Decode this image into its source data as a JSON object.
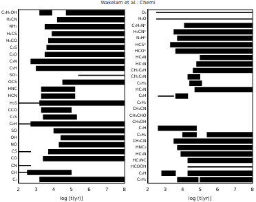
{
  "header": "Wakelam et al.: Chemi",
  "chart_data": [
    {
      "type": "bar",
      "orientation": "horizontal",
      "grid": false,
      "xlabel": "log [t(yr)]",
      "xlim": [
        2,
        8
      ],
      "xticks": [
        2,
        3,
        4,
        5,
        6,
        7,
        8
      ],
      "categories": [
        "C₂H₅OH",
        "H₂CN",
        "NH₃",
        "H₂CS",
        "H₂CO",
        "C₃S",
        "C₃O",
        "C₃N",
        "C₃H",
        "SO₂",
        "OCS",
        "HNC",
        "HCN",
        "H₂S",
        "CCO",
        "C₂S",
        "C₂H",
        "SO",
        "OH",
        "NO",
        "CS",
        "CO",
        "CN",
        "CH",
        "C₂"
      ],
      "series": [
        {
          "line_style": "solid",
          "color": "#000000",
          "values": [
            [
              [
                3.2,
                3.9
              ],
              [
                4.7,
                8
              ]
            ],
            [
              [
                4.2,
                8
              ]
            ],
            [
              [
                3.5,
                8
              ]
            ],
            [
              [
                3.9,
                8
              ]
            ],
            [
              [
                3.7,
                8
              ]
            ],
            [
              [
                3.6,
                8
              ]
            ],
            [
              [
                3.5,
                8
              ]
            ],
            [
              [
                2.7,
                8
              ]
            ],
            [
              [
                3.0,
                8
              ]
            ],
            [],
            [
              [
                4.5,
                8
              ]
            ],
            [
              [
                3.3,
                5.2
              ]
            ],
            [
              [
                3.3,
                5.2
              ]
            ],
            [
              [
                3.2,
                8
              ]
            ],
            [
              [
                3.3,
                5.0
              ]
            ],
            [
              [
                3.4,
                5.3
              ]
            ],
            [
              [
                2.7,
                8
              ]
            ],
            [
              [
                4.0,
                8
              ]
            ],
            [
              [
                4.4,
                8
              ]
            ],
            [
              [
                4.3,
                8
              ]
            ],
            [
              [
                3.7,
                8
              ]
            ],
            [
              [
                3.4,
                8
              ]
            ],
            [],
            [
              [
                2.5,
                5.0
              ]
            ],
            [
              [
                3.2,
                8
              ]
            ]
          ]
        },
        {
          "line_style": "dotted",
          "color": "#000000",
          "values": [
            [],
            [],
            [],
            [],
            [],
            [],
            [],
            [],
            [],
            [
              [
                5.4,
                8
              ]
            ],
            [],
            [],
            [],
            [
              [
                2.0,
                3.2
              ]
            ],
            [],
            [],
            [
              [
                2.0,
                2.7
              ]
            ],
            [],
            [],
            [],
            [
              [
                2.0,
                2.7
              ]
            ],
            [],
            [
              [
                2.0,
                2.7
              ]
            ],
            [
              [
                2.0,
                2.5
              ]
            ],
            []
          ]
        }
      ]
    },
    {
      "type": "bar",
      "orientation": "horizontal",
      "grid": false,
      "xlabel": "log [t(yr)]",
      "xlim": [
        2,
        8
      ],
      "xticks": [
        2,
        3,
        4,
        5,
        6,
        7,
        8
      ],
      "categories": [
        "O₂",
        "H₂O",
        "C₃H₂N⁺",
        "H₂CN⁺",
        "N₂H⁺",
        "HCS⁺",
        "HCO⁺",
        "HC₉N",
        "HC₇N",
        "CH₃C₄H",
        "CH₃C₃N",
        "C₆H₂",
        "HC₅N",
        "C₆H",
        "C₄H₂",
        "CH₂CN",
        "CH₃CHO",
        "CH₃OH",
        "C₅H",
        "C₃H₂",
        "CH₃CN",
        "HNC₃",
        "HC₃N",
        "HC₂NC",
        "HCOOH",
        "C₄H",
        "C₅H₂"
      ],
      "series": [
        {
          "line_style": "solid",
          "color": "#000000",
          "values": [
            [],
            [],
            [
              [
                4.1,
                8
              ]
            ],
            [
              [
                3.5,
                8
              ]
            ],
            [
              [
                3.7,
                8
              ]
            ],
            [
              [
                3.3,
                8
              ]
            ],
            [
              [
                3.6,
                8
              ]
            ],
            [
              [
                5.0,
                8
              ]
            ],
            [
              [
                4.8,
                8
              ]
            ],
            [
              [
                4.6,
                8
              ]
            ],
            [
              [
                4.3,
                5.0
              ]
            ],
            [
              [
                4.4,
                5.1
              ]
            ],
            [
              [
                4.7,
                8
              ]
            ],
            [
              [
                3.6,
                4.3
              ]
            ],
            [],
            [],
            [],
            [],
            [
              [
                2.6,
                4.8
              ]
            ],
            [
              [
                4.0,
                4.8
              ],
              [
                5.4,
                8
              ]
            ],
            [
              [
                3.5,
                8
              ]
            ],
            [
              [
                3.7,
                8
              ]
            ],
            [
              [
                3.9,
                8
              ]
            ],
            [
              [
                4.3,
                8
              ]
            ],
            [],
            [
              [
                2.8,
                3.6
              ],
              [
                4.3,
                8
              ]
            ],
            [
              [
                3.7,
                4.9
              ],
              [
                5.0,
                8
              ]
            ]
          ]
        },
        {
          "line_style": "dotted",
          "color": "#000000",
          "values": [
            [
              [
                2.5,
                8
              ]
            ],
            [
              [
                2.5,
                8
              ]
            ],
            [],
            [],
            [],
            [],
            [],
            [],
            [],
            [],
            [],
            [],
            [],
            [
              [
                2.6,
                3.5
              ]
            ],
            [],
            [],
            [],
            [],
            [],
            [],
            [],
            [],
            [],
            [],
            [
              [
                4.3,
                8
              ]
            ],
            [],
            []
          ]
        }
      ]
    }
  ]
}
